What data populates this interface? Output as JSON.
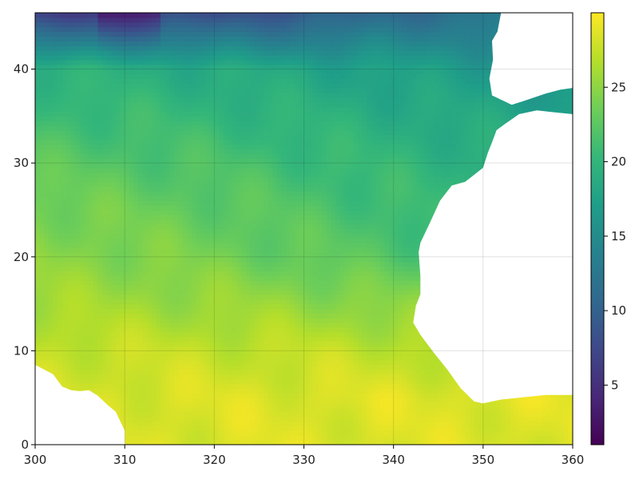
{
  "chart_data": {
    "type": "heatmap",
    "title": "",
    "xlabel": "",
    "ylabel": "",
    "xlim": [
      300,
      360
    ],
    "ylim": [
      0,
      46
    ],
    "x_ticks": [
      "300",
      "310",
      "320",
      "330",
      "340",
      "350",
      "360"
    ],
    "y_ticks": [
      "0",
      "10",
      "20",
      "30",
      "40"
    ],
    "colorbar": {
      "range": [
        1,
        30
      ],
      "ticks": [
        "5",
        "10",
        "15",
        "20",
        "25"
      ],
      "colormap": "viridis",
      "stops": [
        "#440154",
        "#482878",
        "#3e4989",
        "#31688e",
        "#26828e",
        "#1f9e89",
        "#35b779",
        "#6ece58",
        "#b5de2b",
        "#fde725"
      ]
    },
    "grid": true,
    "missing_color": "#ffffff",
    "land_mask": [
      {
        "name": "africa",
        "lon_lat": [
          [
            360,
            0
          ],
          [
            360,
            5.3
          ],
          [
            357,
            5.3
          ],
          [
            355,
            5.1
          ],
          [
            352,
            4.8
          ],
          [
            350,
            4.4
          ],
          [
            349,
            4.6
          ],
          [
            347.5,
            6
          ],
          [
            346,
            8
          ],
          [
            344.5,
            9.8
          ],
          [
            343,
            11.7
          ],
          [
            342.2,
            13
          ],
          [
            342.5,
            14.8
          ],
          [
            343,
            16
          ],
          [
            343,
            18
          ],
          [
            342.8,
            20.5
          ],
          [
            343,
            21.5
          ],
          [
            344,
            23.5
          ],
          [
            345.2,
            26
          ],
          [
            346.5,
            27.6
          ],
          [
            348,
            28
          ],
          [
            350,
            29.5
          ],
          [
            350.5,
            31
          ],
          [
            351,
            32.2
          ],
          [
            351.5,
            33.5
          ],
          [
            352.5,
            34.2
          ],
          [
            354,
            35.2
          ],
          [
            356,
            35.6
          ],
          [
            358,
            35.4
          ],
          [
            360,
            35.2
          ],
          [
            360,
            0
          ]
        ]
      },
      {
        "name": "iberia",
        "lon_lat": [
          [
            360,
            46
          ],
          [
            352,
            46
          ],
          [
            351.6,
            44
          ],
          [
            351,
            43
          ],
          [
            351.1,
            41
          ],
          [
            350.7,
            39
          ],
          [
            351,
            37.2
          ],
          [
            353.2,
            36.2
          ],
          [
            354.5,
            36.6
          ],
          [
            357,
            37.4
          ],
          [
            358.6,
            37.8
          ],
          [
            360,
            38
          ],
          [
            360,
            46
          ]
        ]
      },
      {
        "name": "mediterranean-islands",
        "lon_lat": [
          [
            360,
            40.8
          ],
          [
            359.7,
            39.5
          ],
          [
            359.9,
            38.8
          ],
          [
            360,
            38.9
          ]
        ]
      },
      {
        "name": "south-america",
        "lon_lat": [
          [
            300,
            0
          ],
          [
            300,
            8.5
          ],
          [
            301,
            8
          ],
          [
            302,
            7.5
          ],
          [
            303,
            6.2
          ],
          [
            304,
            5.8
          ],
          [
            305,
            5.7
          ],
          [
            306,
            5.8
          ],
          [
            307,
            5.2
          ],
          [
            308,
            4.3
          ],
          [
            309,
            3.5
          ],
          [
            309.6,
            2.3
          ],
          [
            310,
            1.5
          ],
          [
            310,
            0
          ],
          [
            300,
            0
          ]
        ]
      }
    ],
    "field": {
      "description_of_values": "sea surface temperature estimated as smooth field by lat/lon",
      "anchors_lat": [
        0,
        5,
        10,
        15,
        20,
        25,
        30,
        35,
        40,
        43,
        46
      ],
      "anchors_value_west": [
        28.5,
        28.3,
        27.5,
        26,
        25,
        24,
        22.5,
        21,
        19.5,
        13,
        6
      ],
      "anchors_value_east": [
        28.5,
        28.8,
        27,
        24,
        20,
        19,
        18.5,
        17.5,
        16,
        15,
        14
      ]
    }
  }
}
